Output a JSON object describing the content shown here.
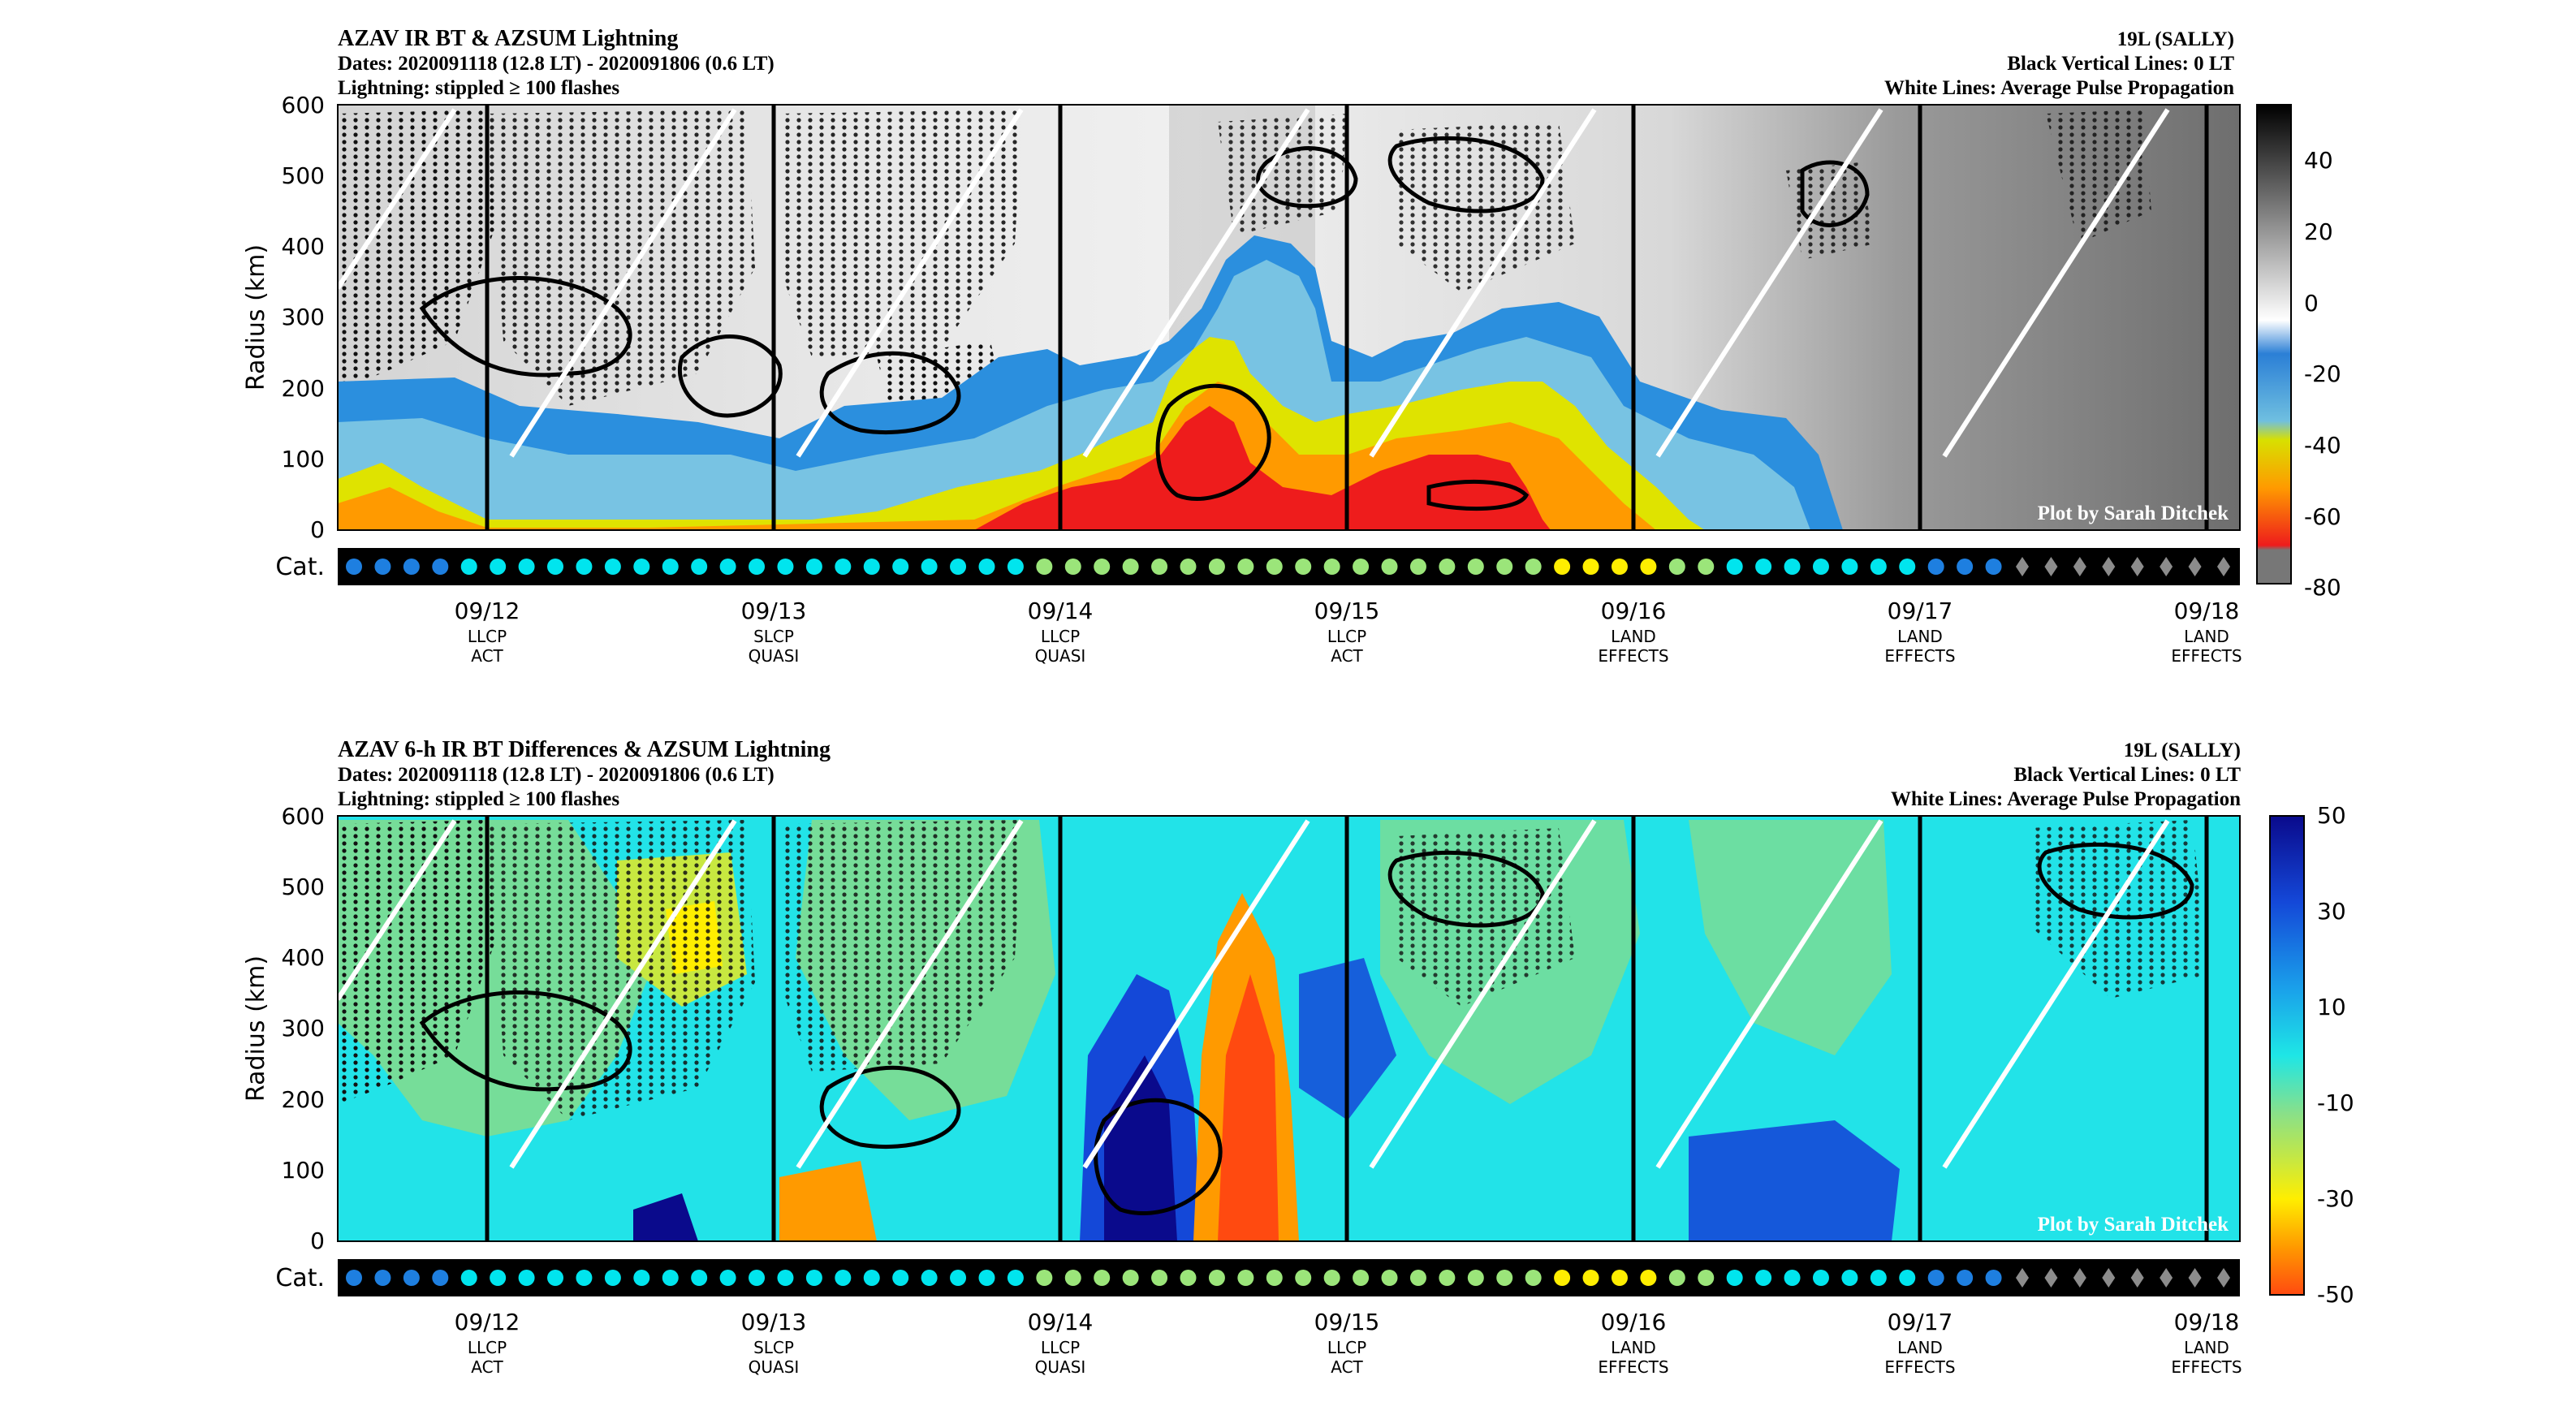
{
  "panels": [
    {
      "id": "top",
      "title": "AZAV IR BT & AZSUM Lightning",
      "dates": "Dates: 2020091118 (12.8 LT) - 2020091806 (0.6 LT)",
      "lightning": "Lightning: stippled ≥ 100 flashes",
      "storm": "19L (SALLY)",
      "black_lines": "Black Vertical Lines: 0 LT",
      "white_lines": "White Lines: Average Pulse Propagation",
      "credit": "Plot by Sarah Ditchek",
      "ylabel": "Radius (km)",
      "yticks": [
        "0",
        "100",
        "200",
        "300",
        "400",
        "500",
        "600"
      ],
      "cat_label": "Cat.",
      "colorbar_ticks": [
        "40",
        "20",
        "0",
        "-20",
        "-40",
        "-60",
        "-80"
      ],
      "dates_ticks": [
        "09/12",
        "09/13",
        "09/14",
        "09/15",
        "09/16",
        "09/17",
        "09/18"
      ],
      "phase_line1": [
        "LLCP",
        "SLCP",
        "LLCP",
        "LLCP",
        "LAND",
        "LAND",
        "LAND"
      ],
      "phase_line2": [
        "ACT",
        "QUASI",
        "QUASI",
        "ACT",
        "EFFECTS",
        "EFFECTS",
        "EFFECTS"
      ]
    },
    {
      "id": "bottom",
      "title": "AZAV 6-h IR BT Differences & AZSUM Lightning",
      "dates": "Dates: 2020091118 (12.8 LT) - 2020091806 (0.6 LT)",
      "lightning": "Lightning: stippled ≥ 100 flashes",
      "storm": "19L (SALLY)",
      "black_lines": "Black Vertical Lines: 0 LT",
      "white_lines": "White Lines: Average Pulse Propagation",
      "credit": "Plot by Sarah Ditchek",
      "ylabel": "Radius (km)",
      "yticks": [
        "0",
        "100",
        "200",
        "300",
        "400",
        "500",
        "600"
      ],
      "cat_label": "Cat.",
      "colorbar_ticks": [
        "50",
        "30",
        "10",
        "-10",
        "-30",
        "-50"
      ],
      "dates_ticks": [
        "09/12",
        "09/13",
        "09/14",
        "09/15",
        "09/16",
        "09/17",
        "09/18"
      ],
      "phase_line1": [
        "LLCP",
        "SLCP",
        "LLCP",
        "LLCP",
        "LAND",
        "LAND",
        "LAND"
      ],
      "phase_line2": [
        "ACT",
        "QUASI",
        "QUASI",
        "ACT",
        "EFFECTS",
        "EFFECTS",
        "EFFECTS"
      ]
    }
  ],
  "chart_data": [
    {
      "type": "heatmap",
      "title": "AZAV IR BT & AZSUM Lightning",
      "variable": "IR brightness temperature",
      "ylabel": "Radius (km)",
      "ylim": [
        0,
        600
      ],
      "x_range": [
        "2020091118",
        "2020091806"
      ],
      "x_ticks": [
        "09/12",
        "09/13",
        "09/14",
        "09/15",
        "09/16",
        "09/17",
        "09/18"
      ],
      "colorbar_range": [
        -80,
        50
      ],
      "colorbar_ticks": [
        40,
        20,
        0,
        -20,
        -40,
        -60,
        -80
      ],
      "overlays": [
        "lightning stippling ≥ 100 flashes",
        "black vertical lines at 0 LT",
        "white average pulse propagation lines"
      ]
    },
    {
      "type": "heatmap",
      "title": "AZAV 6-h IR BT Differences & AZSUM Lightning",
      "variable": "6-h IR brightness temperature difference",
      "ylabel": "Radius (km)",
      "ylim": [
        0,
        600
      ],
      "x_range": [
        "2020091118",
        "2020091806"
      ],
      "x_ticks": [
        "09/12",
        "09/13",
        "09/14",
        "09/15",
        "09/16",
        "09/17",
        "09/18"
      ],
      "colorbar_range": [
        -50,
        50
      ],
      "colorbar_ticks": [
        50,
        30,
        10,
        -10,
        -30,
        -50
      ],
      "overlays": [
        "lightning stippling ≥ 100 flashes",
        "black vertical lines at 0 LT",
        "white average pulse propagation lines"
      ]
    }
  ],
  "category_markers": [
    "TD",
    "TD",
    "TD",
    "TD",
    "TS",
    "TS",
    "TS",
    "TS",
    "TS",
    "TS",
    "TS",
    "TS",
    "TS",
    "TS",
    "TS",
    "TS",
    "TS",
    "TS",
    "TS",
    "TS",
    "TS",
    "TS",
    "TS",
    "TS",
    "C1",
    "C1",
    "C1",
    "C1",
    "C1",
    "C1",
    "C1",
    "C1",
    "C1",
    "C1",
    "C1",
    "C1",
    "C1",
    "C1",
    "C1",
    "C1",
    "C1",
    "C1",
    "C2",
    "C2",
    "C2",
    "C2",
    "C1",
    "C1",
    "TS",
    "TS",
    "TS",
    "TS",
    "TS",
    "TS",
    "TS",
    "TD",
    "TD",
    "TD",
    "EX",
    "EX",
    "EX",
    "EX",
    "EX",
    "EX",
    "EX",
    "EX"
  ],
  "colors": {
    "TD": "#1e7fe0",
    "TS": "#00e5ee",
    "C1": "#9be57a",
    "C2": "#ffee00",
    "EX": "#8c8c8c",
    "cat_bar": "#000000"
  }
}
